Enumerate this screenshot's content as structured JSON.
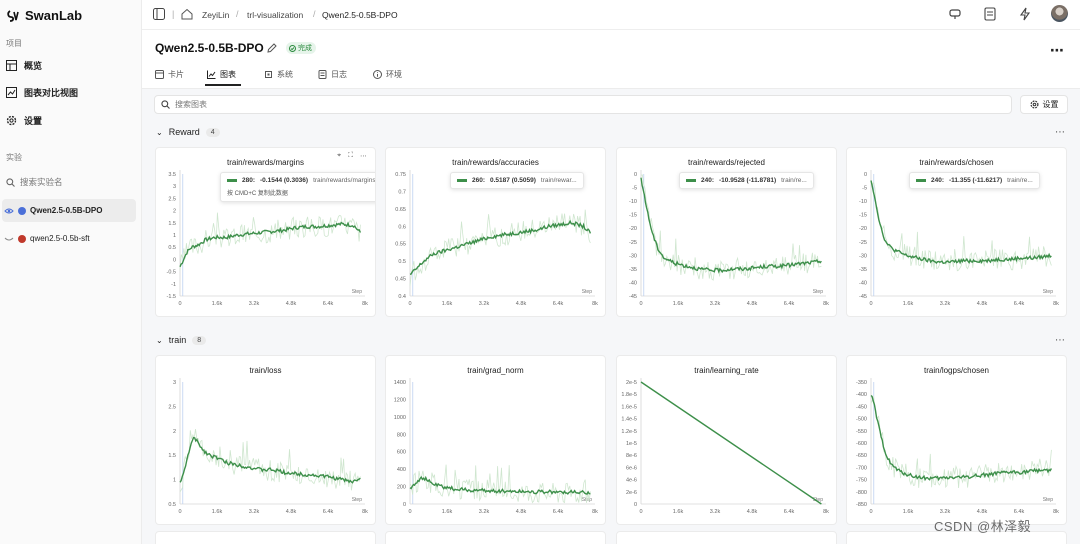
{
  "brand": {
    "name": "SwanLab"
  },
  "sidebar": {
    "section_project": "项目",
    "nav": [
      {
        "label": "概览",
        "icon": "table-icon"
      },
      {
        "label": "图表对比视图",
        "icon": "chart-compare-icon"
      },
      {
        "label": "设置",
        "icon": "gear-icon"
      }
    ],
    "section_experiments": "实验",
    "search_placeholder": "搜索实验名",
    "experiments": [
      {
        "name": "Qwen2.5-0.5B-DPO",
        "color": "#4a6fd8",
        "active": true
      },
      {
        "name": "qwen2.5-0.5b-sft",
        "color": "#c0392b",
        "active": false
      }
    ]
  },
  "topbar": {
    "breadcrumb": [
      "ZeyiLin",
      "trl-visualization",
      "Qwen2.5-0.5B-DPO"
    ]
  },
  "header": {
    "title": "Qwen2.5-0.5B-DPO",
    "status": "完成",
    "tabs": [
      {
        "label": "卡片",
        "icon": "card-icon"
      },
      {
        "label": "图表",
        "icon": "line-chart-icon",
        "active": true
      },
      {
        "label": "系统",
        "icon": "system-icon"
      },
      {
        "label": "日志",
        "icon": "log-icon"
      },
      {
        "label": "环境",
        "icon": "info-icon"
      }
    ]
  },
  "toolbar": {
    "search_placeholder": "搜索图表",
    "settings_label": "设置"
  },
  "groups": [
    {
      "name": "Reward",
      "count": "4"
    },
    {
      "name": "train",
      "count": "8"
    }
  ],
  "watermark": "CSDN @林泽毅",
  "colors": {
    "line": "#3d8f4a",
    "band": "#cfe6cf",
    "accent": "#4a6fd8"
  },
  "chart_data": [
    {
      "type": "line",
      "title": "train/rewards/margins",
      "x_ticks": [
        "0",
        "1.6k",
        "3.2k",
        "4.8k",
        "6.4k",
        "8k"
      ],
      "y_ticks": [
        "3.5",
        "3",
        "2.5",
        "2",
        "1.5",
        "1",
        "0.5",
        "0",
        "-0.5",
        "-1",
        "-1.5"
      ],
      "xlabel": "Step",
      "ylim": [
        -1.5,
        3.5
      ],
      "x": [
        0,
        150,
        300,
        500,
        800,
        1100,
        1500,
        2000,
        2500,
        3000,
        3500,
        4000,
        4500,
        5000,
        5500,
        6000,
        6500,
        7000,
        7500,
        7800
      ],
      "y": [
        -0.3,
        0.0,
        0.3,
        0.5,
        0.6,
        0.8,
        0.9,
        0.9,
        1.0,
        1.05,
        1.1,
        1.15,
        1.2,
        1.3,
        1.35,
        1.35,
        1.4,
        1.45,
        1.4,
        1.1
      ],
      "tooltip": {
        "step": "280:",
        "value": "-0.1544 (0.3036)",
        "series": "train/rewards/margins",
        "hint": "按 CMD+C 复制此数据"
      }
    },
    {
      "type": "line",
      "title": "train/rewards/accuracies",
      "x_ticks": [
        "0",
        "1.6k",
        "3.2k",
        "4.8k",
        "6.4k",
        "8k"
      ],
      "y_ticks": [
        "0.75",
        "0.7",
        "0.65",
        "0.6",
        "0.55",
        "0.5",
        "0.45",
        "0.4"
      ],
      "xlabel": "Step",
      "ylim": [
        0.4,
        0.75
      ],
      "x": [
        0,
        150,
        300,
        600,
        1000,
        1500,
        2000,
        2500,
        3000,
        3500,
        4000,
        4500,
        5000,
        5500,
        6000,
        6500,
        7000,
        7500,
        7800
      ],
      "y": [
        0.46,
        0.47,
        0.48,
        0.5,
        0.52,
        0.53,
        0.54,
        0.55,
        0.56,
        0.57,
        0.575,
        0.58,
        0.585,
        0.59,
        0.6,
        0.605,
        0.61,
        0.6,
        0.58
      ],
      "tooltip": {
        "step": "260:",
        "value": "0.5187 (0.5059)",
        "series": "train/rewar..."
      }
    },
    {
      "type": "line",
      "title": "train/rewards/rejected",
      "x_ticks": [
        "0",
        "1.6k",
        "3.2k",
        "4.8k",
        "6.4k",
        "8k"
      ],
      "y_ticks": [
        "0",
        "-5",
        "-10",
        "-15",
        "-20",
        "-25",
        "-30",
        "-35",
        "-40",
        "-45"
      ],
      "xlabel": "Step",
      "ylim": [
        -45,
        0
      ],
      "x": [
        0,
        150,
        300,
        500,
        700,
        1000,
        1500,
        2000,
        2500,
        3000,
        3500,
        4000,
        4500,
        5000,
        5500,
        6000,
        6500,
        7000,
        7500,
        7800
      ],
      "y": [
        -2,
        -8,
        -15,
        -22,
        -27,
        -31,
        -33,
        -34,
        -35,
        -35.5,
        -35.5,
        -35,
        -35,
        -34.5,
        -34,
        -34,
        -33.5,
        -33,
        -32.5,
        -32
      ],
      "tooltip": {
        "step": "240:",
        "value": "-10.9528 (-11.8781)",
        "series": "train/re..."
      }
    },
    {
      "type": "line",
      "title": "train/rewards/chosen",
      "x_ticks": [
        "0",
        "1.6k",
        "3.2k",
        "4.8k",
        "6.4k",
        "8k"
      ],
      "y_ticks": [
        "0",
        "-5",
        "-10",
        "-15",
        "-20",
        "-25",
        "-30",
        "-35",
        "-40",
        "-45"
      ],
      "xlabel": "Step",
      "ylim": [
        -45,
        0
      ],
      "x": [
        0,
        150,
        300,
        500,
        700,
        1000,
        1500,
        2000,
        2500,
        3000,
        3500,
        4000,
        4500,
        5000,
        5500,
        6000,
        6500,
        7000,
        7500,
        7800
      ],
      "y": [
        -2,
        -8,
        -15,
        -22,
        -26,
        -28,
        -30,
        -31,
        -32,
        -32.5,
        -32.5,
        -32,
        -32,
        -32,
        -31.5,
        -31.5,
        -31,
        -31,
        -30.5,
        -30
      ],
      "tooltip": {
        "step": "240:",
        "value": "-11.355 (-11.6217)",
        "series": "train/re..."
      }
    },
    {
      "type": "line",
      "title": "train/loss",
      "x_ticks": [
        "0",
        "1.6k",
        "3.2k",
        "4.8k",
        "6.4k",
        "8k"
      ],
      "y_ticks": [
        "3",
        "2.5",
        "2",
        "1.5",
        "1",
        "0.5"
      ],
      "xlabel": "Step",
      "ylim": [
        0.5,
        3.0
      ],
      "x": [
        0,
        150,
        300,
        450,
        600,
        800,
        1000,
        1300,
        1600,
        2000,
        2500,
        3000,
        3500,
        4000,
        4500,
        5000,
        5500,
        6000,
        6500,
        7000,
        7500,
        7800
      ],
      "y": [
        0.95,
        1.1,
        1.4,
        1.7,
        1.85,
        1.75,
        1.6,
        1.5,
        1.45,
        1.35,
        1.3,
        1.25,
        1.2,
        1.2,
        1.15,
        1.12,
        1.1,
        1.08,
        1.05,
        1.0,
        0.95,
        1.05
      ]
    },
    {
      "type": "line",
      "title": "train/grad_norm",
      "x_ticks": [
        "0",
        "1.6k",
        "3.2k",
        "4.8k",
        "6.4k",
        "8k"
      ],
      "y_ticks": [
        "1400",
        "1200",
        "1000",
        "800",
        "600",
        "400",
        "200",
        "0"
      ],
      "xlabel": "Step",
      "ylim": [
        0,
        1400
      ],
      "x": [
        0,
        150,
        300,
        500,
        700,
        1000,
        1500,
        2000,
        2500,
        3000,
        3500,
        4000,
        4500,
        5000,
        5500,
        6000,
        6500,
        7000,
        7500,
        7800
      ],
      "y": [
        180,
        220,
        260,
        300,
        280,
        230,
        190,
        170,
        160,
        155,
        150,
        150,
        145,
        145,
        140,
        140,
        135,
        135,
        130,
        130
      ]
    },
    {
      "type": "line",
      "title": "train/learning_rate",
      "x_ticks": [
        "0",
        "1.6k",
        "3.2k",
        "4.8k",
        "6.4k",
        "8k"
      ],
      "y_ticks": [
        "2e-5",
        "1.8e-5",
        "1.6e-5",
        "1.4e-5",
        "1.2e-5",
        "1e-5",
        "8e-6",
        "6e-6",
        "4e-6",
        "2e-6",
        "0"
      ],
      "xlabel": "Step",
      "ylim": [
        0,
        2e-05
      ],
      "x": [
        0,
        7800
      ],
      "y": [
        2e-05,
        0
      ]
    },
    {
      "type": "line",
      "title": "train/logps/chosen",
      "x_ticks": [
        "0",
        "1.6k",
        "3.2k",
        "4.8k",
        "6.4k",
        "8k"
      ],
      "y_ticks": [
        "-350",
        "-400",
        "-450",
        "-500",
        "-550",
        "-600",
        "-650",
        "-700",
        "-750",
        "-800",
        "-850"
      ],
      "xlabel": "Step",
      "ylim": [
        -850,
        -350
      ],
      "x": [
        0,
        150,
        300,
        500,
        700,
        1000,
        1300,
        1600,
        2000,
        2500,
        3000,
        3500,
        4000,
        4500,
        5000,
        5500,
        6000,
        6500,
        7000,
        7500,
        7800
      ],
      "y": [
        -400,
        -450,
        -520,
        -600,
        -660,
        -700,
        -720,
        -730,
        -740,
        -745,
        -745,
        -740,
        -740,
        -735,
        -730,
        -725,
        -720,
        -720,
        -715,
        -710,
        -712
      ]
    }
  ]
}
